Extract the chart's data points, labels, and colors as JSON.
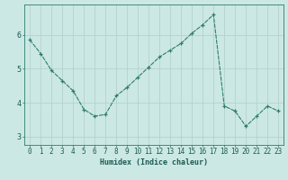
{
  "xlabel": "Humidex (Indice chaleur)",
  "x": [
    0,
    1,
    2,
    3,
    4,
    5,
    6,
    7,
    8,
    9,
    10,
    11,
    12,
    13,
    14,
    15,
    16,
    17,
    18,
    19,
    20,
    21,
    22,
    23
  ],
  "y": [
    5.85,
    5.45,
    4.95,
    4.65,
    4.35,
    3.8,
    3.6,
    3.65,
    4.2,
    4.45,
    4.75,
    5.05,
    5.35,
    5.55,
    5.75,
    6.05,
    6.3,
    6.6,
    3.9,
    3.75,
    3.3,
    3.6,
    3.9,
    3.75
  ],
  "line_color": "#2e7d6e",
  "bg_color": "#cce8e4",
  "grid_color": "#b0ceca",
  "axis_color": "#2e7d6e",
  "tick_color": "#1a5c52",
  "ylim": [
    2.75,
    6.9
  ],
  "yticks": [
    3,
    4,
    5,
    6
  ],
  "label_fontsize": 6.0,
  "tick_fontsize": 5.5
}
